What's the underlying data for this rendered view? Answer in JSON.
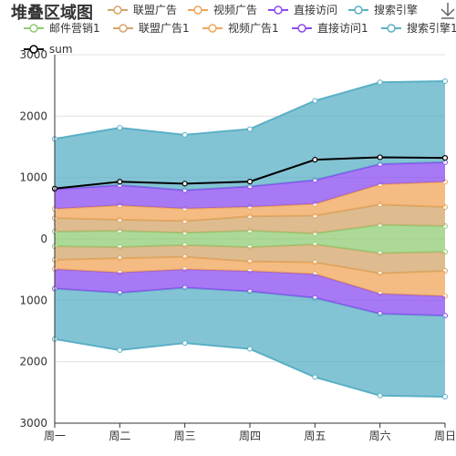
{
  "chart_data": {
    "type": "area",
    "title": "堆叠区域图",
    "categories": [
      "周一",
      "周二",
      "周三",
      "周四",
      "周五",
      "周六",
      "周日"
    ],
    "y_ticks": [
      "3000",
      "2000",
      "1000",
      "0",
      "1000",
      "2000",
      "3000"
    ],
    "ylim": [
      -3000,
      3000
    ],
    "grid": true,
    "legend_position": "top",
    "toolbox_icon": "save-as-image-icon",
    "series": [
      {
        "name": "邮件营销",
        "values": [
          120,
          132,
          101,
          134,
          90,
          230,
          210
        ],
        "color": "#91cc75",
        "stack": "up"
      },
      {
        "name": "联盟广告",
        "values": [
          220,
          182,
          191,
          234,
          290,
          330,
          310
        ],
        "color": "#d4a66a",
        "stack": "up"
      },
      {
        "name": "视频广告",
        "values": [
          150,
          232,
          201,
          154,
          190,
          330,
          410
        ],
        "color": "#f0a65a",
        "stack": "up"
      },
      {
        "name": "直接访问",
        "values": [
          320,
          332,
          301,
          334,
          390,
          330,
          320
        ],
        "color": "#8a4cf0",
        "stack": "up"
      },
      {
        "name": "搜索引擎",
        "values": [
          820,
          932,
          901,
          934,
          1290,
          1330,
          1320
        ],
        "color": "#5ab0c6",
        "stack": "up"
      },
      {
        "name": "邮件营销1",
        "values": [
          120,
          132,
          101,
          134,
          90,
          230,
          210
        ],
        "color": "#91cc75",
        "stack": "down"
      },
      {
        "name": "联盟广告1",
        "values": [
          220,
          182,
          191,
          234,
          290,
          330,
          310
        ],
        "color": "#d4a66a",
        "stack": "down"
      },
      {
        "name": "视频广告1",
        "values": [
          150,
          232,
          201,
          154,
          190,
          330,
          410
        ],
        "color": "#f0a65a",
        "stack": "down"
      },
      {
        "name": "直接访问1",
        "values": [
          320,
          332,
          301,
          334,
          390,
          330,
          320
        ],
        "color": "#8a4cf0",
        "stack": "down"
      },
      {
        "name": "搜索引擎1",
        "values": [
          820,
          932,
          901,
          934,
          1290,
          1330,
          1320
        ],
        "color": "#5ab0c6",
        "stack": "down"
      },
      {
        "name": "sum",
        "values": [
          820,
          932,
          901,
          934,
          1290,
          1330,
          1320
        ],
        "color": "#000000",
        "stack": "none"
      }
    ]
  }
}
